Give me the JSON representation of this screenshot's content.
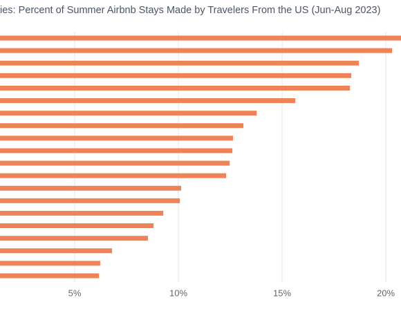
{
  "chart_data": {
    "type": "barh",
    "title": "ies: Percent of Summer Airbnb Stays Made by Travelers From the US (Jun-Aug 2023)",
    "categories": [
      null,
      null,
      null,
      null,
      null,
      null,
      null,
      null,
      null,
      null,
      null,
      null,
      null,
      null,
      null,
      null,
      null,
      null,
      null,
      null
    ],
    "values": [
      20.9,
      20.3,
      18.7,
      18.33,
      18.27,
      15.63,
      13.77,
      13.13,
      12.63,
      12.6,
      12.47,
      12.3,
      10.13,
      10.07,
      9.27,
      8.8,
      8.53,
      6.8,
      6.23,
      6.17
    ],
    "color": "#ee8358",
    "xlim": [
      1.4,
      20.73
    ],
    "xticks": [
      {
        "value": 5,
        "label": "5%"
      },
      {
        "value": 10,
        "label": "10%"
      },
      {
        "value": 15,
        "label": "15%"
      },
      {
        "value": 20,
        "label": "20%"
      }
    ],
    "grid": true
  }
}
